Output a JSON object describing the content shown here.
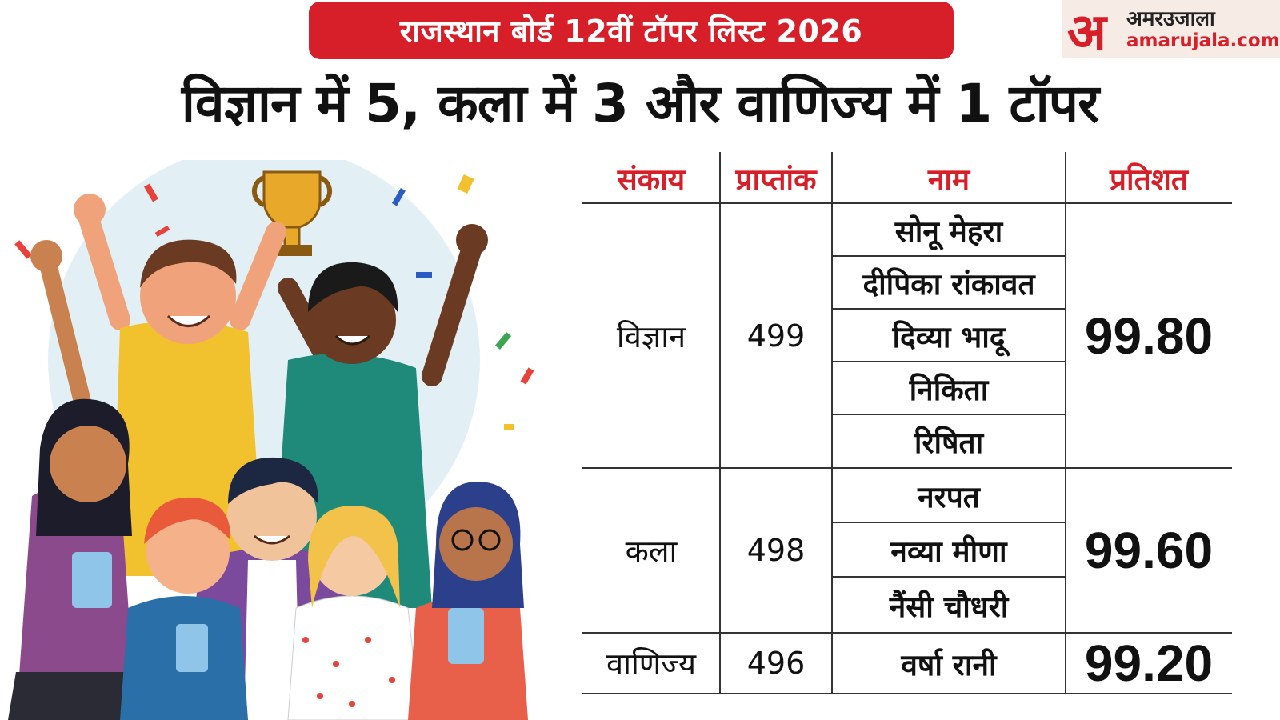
{
  "banner": {
    "text": "राजस्थान बोर्ड 12वीं टॉपर लिस्ट 2026"
  },
  "logo": {
    "mark": "अ",
    "hindi": "अमरउजाला",
    "url": "amarujala.com"
  },
  "headline": "विज्ञान में 5, कला में 3 और वाणिज्य में 1 टॉपर",
  "colors": {
    "accent_red": "#d71f2a",
    "text": "#111111"
  },
  "table": {
    "headers": [
      "संकाय",
      "प्राप्तांक",
      "नाम",
      "प्रतिशत"
    ],
    "groups": [
      {
        "faculty": "विज्ञान",
        "marks": "499",
        "percent": "99.80",
        "names": [
          "सोनू मेहरा",
          "दीपिका रांकावत",
          "दिव्या भादू",
          "निकिता",
          "रिषिता"
        ]
      },
      {
        "faculty": "कला",
        "marks": "498",
        "percent": "99.60",
        "names": [
          "नरपत",
          "नव्या मीणा",
          "नैंसी चौधरी"
        ]
      },
      {
        "faculty": "वाणिज्य",
        "marks": "496",
        "percent": "99.20",
        "names": [
          "वर्षा रानी"
        ]
      }
    ]
  }
}
